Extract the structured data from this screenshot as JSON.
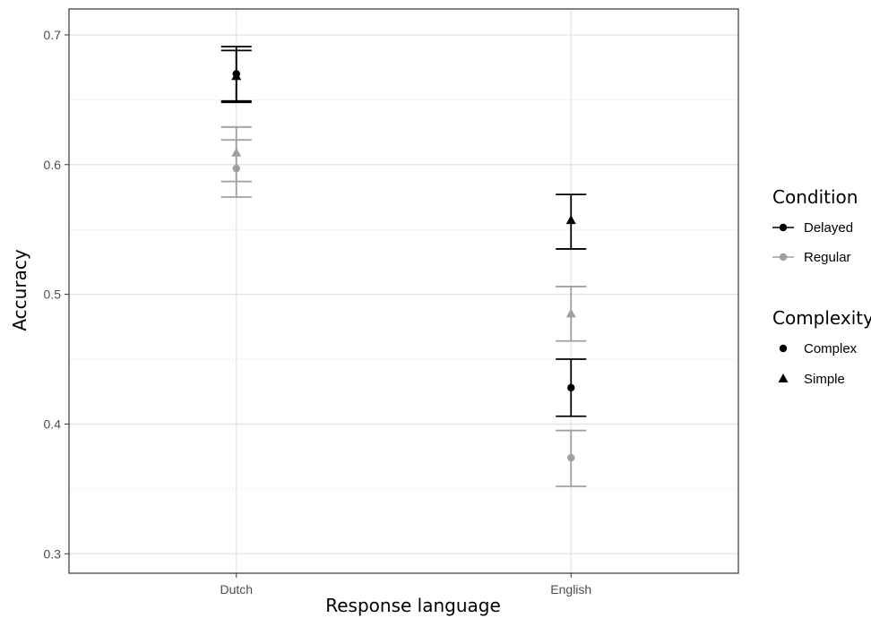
{
  "chart_data": {
    "type": "scatter",
    "xlabel": "Response language",
    "ylabel": "Accuracy",
    "categories": [
      "Dutch",
      "English"
    ],
    "ylim": [
      0.285,
      0.72
    ],
    "yticks": [
      0.3,
      0.4,
      0.5,
      0.6,
      0.7
    ],
    "yticks_label": [
      "0.3",
      "0.4",
      "0.5",
      "0.6",
      "0.7"
    ],
    "grid": true,
    "legend_position": "right",
    "colors": {
      "Delayed": "#000000",
      "Regular": "#a0a0a0"
    },
    "series": [
      {
        "condition": "Delayed",
        "complexity": "Complex",
        "values": [
          0.67,
          0.428
        ],
        "lower": [
          0.648,
          0.406
        ],
        "upper": [
          0.691,
          0.45
        ]
      },
      {
        "condition": "Delayed",
        "complexity": "Simple",
        "values": [
          0.668,
          0.557
        ],
        "lower": [
          0.649,
          0.535
        ],
        "upper": [
          0.688,
          0.577
        ]
      },
      {
        "condition": "Regular",
        "complexity": "Complex",
        "values": [
          0.597,
          0.374
        ],
        "lower": [
          0.575,
          0.352
        ],
        "upper": [
          0.619,
          0.395
        ]
      },
      {
        "condition": "Regular",
        "complexity": "Simple",
        "values": [
          0.609,
          0.485
        ],
        "lower": [
          0.587,
          0.464
        ],
        "upper": [
          0.629,
          0.506
        ]
      }
    ],
    "legend": {
      "condition_title": "Condition",
      "condition_items": [
        "Delayed",
        "Regular"
      ],
      "complexity_title": "Complexity",
      "complexity_items": [
        "Complex",
        "Simple"
      ]
    }
  }
}
